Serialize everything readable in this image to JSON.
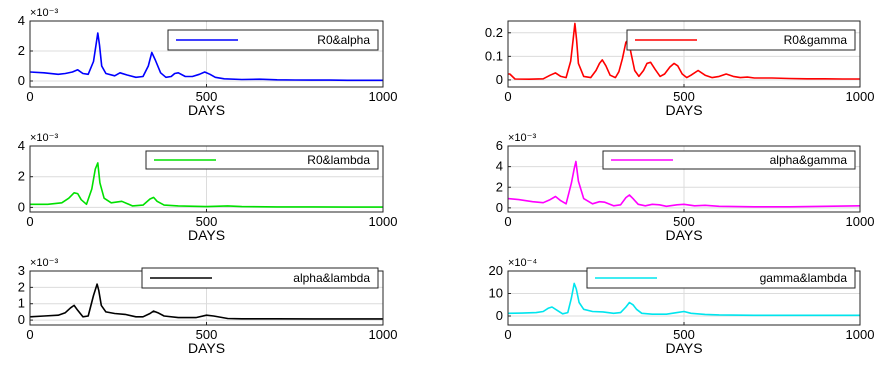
{
  "chart_data": [
    {
      "type": "line",
      "multiplier": "×10⁻³",
      "xlabel": "DAYS",
      "xlim": [
        0,
        1000
      ],
      "xticks": [
        0,
        500,
        1000
      ],
      "ylim": [
        -0.4,
        4
      ],
      "yticks": [
        0,
        2,
        4
      ],
      "grid": true,
      "legend_position": "top-right",
      "series": [
        {
          "name": "R0&alpha",
          "color": "#0000ff",
          "x": [
            0,
            40,
            80,
            100,
            120,
            135,
            150,
            165,
            180,
            187,
            192,
            197,
            203,
            215,
            240,
            255,
            275,
            300,
            320,
            335,
            345,
            355,
            370,
            385,
            400,
            410,
            420,
            440,
            460,
            480,
            495,
            510,
            525,
            550,
            600,
            650,
            700,
            750,
            800,
            850,
            900,
            950,
            1000
          ],
          "y": [
            0.6,
            0.55,
            0.45,
            0.5,
            0.6,
            0.75,
            0.5,
            0.45,
            1.3,
            2.4,
            3.2,
            2.4,
            1.0,
            0.5,
            0.35,
            0.55,
            0.4,
            0.25,
            0.3,
            1.0,
            1.9,
            1.4,
            0.55,
            0.25,
            0.3,
            0.5,
            0.55,
            0.3,
            0.3,
            0.45,
            0.6,
            0.45,
            0.25,
            0.15,
            0.1,
            0.12,
            0.08,
            0.07,
            0.06,
            0.06,
            0.05,
            0.05,
            0.05
          ]
        }
      ]
    },
    {
      "type": "line",
      "multiplier": "",
      "xlabel": "DAYS",
      "xlim": [
        0,
        1000
      ],
      "xticks": [
        0,
        500,
        1000
      ],
      "ylim": [
        -0.03,
        0.25
      ],
      "yticks": [
        0,
        0.1,
        0.2
      ],
      "ytick_labels": [
        "0",
        "0.1",
        "0.2"
      ],
      "grid": true,
      "legend_position": "top-right",
      "series": [
        {
          "name": "R0&gamma",
          "color": "#ff0000",
          "x": [
            0,
            5,
            20,
            60,
            100,
            120,
            135,
            150,
            165,
            178,
            185,
            190,
            195,
            200,
            215,
            235,
            250,
            260,
            268,
            278,
            290,
            305,
            315,
            325,
            335,
            342,
            350,
            360,
            372,
            385,
            395,
            405,
            418,
            432,
            445,
            460,
            472,
            482,
            495,
            508,
            520,
            540,
            560,
            580,
            600,
            620,
            640,
            660,
            680,
            700,
            750,
            800,
            850,
            900,
            950,
            1000
          ],
          "y": [
            0.025,
            0.025,
            0.004,
            0.003,
            0.005,
            0.02,
            0.03,
            0.015,
            0.01,
            0.08,
            0.17,
            0.24,
            0.17,
            0.07,
            0.015,
            0.01,
            0.04,
            0.07,
            0.085,
            0.06,
            0.02,
            0.01,
            0.035,
            0.09,
            0.16,
            0.17,
            0.11,
            0.04,
            0.015,
            0.04,
            0.07,
            0.075,
            0.045,
            0.015,
            0.025,
            0.055,
            0.07,
            0.06,
            0.025,
            0.01,
            0.02,
            0.04,
            0.02,
            0.01,
            0.015,
            0.025,
            0.015,
            0.01,
            0.012,
            0.008,
            0.008,
            0.006,
            0.005,
            0.005,
            0.004,
            0.004
          ]
        }
      ]
    },
    {
      "type": "line",
      "multiplier": "×10⁻³",
      "xlabel": "DAYS",
      "xlim": [
        0,
        1000
      ],
      "xticks": [
        0,
        500,
        1000
      ],
      "ylim": [
        -0.3,
        4
      ],
      "yticks": [
        0,
        2,
        4
      ],
      "grid": true,
      "legend_position": "top-right",
      "series": [
        {
          "name": "R0&lambda",
          "color": "#00e000",
          "x": [
            0,
            50,
            90,
            110,
            125,
            135,
            145,
            160,
            175,
            185,
            192,
            198,
            210,
            230,
            260,
            290,
            320,
            340,
            350,
            360,
            380,
            420,
            500,
            560,
            600,
            700,
            800,
            900,
            1000
          ],
          "y": [
            0.2,
            0.2,
            0.3,
            0.6,
            0.95,
            0.9,
            0.5,
            0.2,
            1.2,
            2.5,
            2.9,
            1.6,
            0.6,
            0.3,
            0.4,
            0.1,
            0.15,
            0.55,
            0.65,
            0.4,
            0.15,
            0.1,
            0.05,
            0.1,
            0.05,
            0.03,
            0.03,
            0.02,
            0.02
          ]
        }
      ]
    },
    {
      "type": "line",
      "multiplier": "×10⁻³",
      "xlabel": "DAYS",
      "xlim": [
        0,
        1000
      ],
      "xticks": [
        0,
        500,
        1000
      ],
      "ylim": [
        -0.4,
        6
      ],
      "yticks": [
        0,
        2,
        4,
        6
      ],
      "grid": true,
      "legend_position": "top-right",
      "series": [
        {
          "name": "alpha&gamma",
          "color": "#ff00ff",
          "x": [
            0,
            30,
            70,
            100,
            120,
            135,
            150,
            165,
            180,
            188,
            193,
            200,
            215,
            240,
            260,
            275,
            300,
            320,
            335,
            345,
            355,
            370,
            390,
            410,
            430,
            450,
            480,
            500,
            530,
            560,
            600,
            700,
            800,
            900,
            1000
          ],
          "y": [
            0.9,
            0.8,
            0.6,
            0.5,
            0.8,
            1.1,
            0.7,
            0.4,
            2.4,
            3.8,
            4.5,
            2.6,
            0.9,
            0.4,
            0.6,
            0.55,
            0.2,
            0.3,
            1.0,
            1.25,
            0.9,
            0.35,
            0.2,
            0.35,
            0.3,
            0.15,
            0.3,
            0.35,
            0.2,
            0.25,
            0.15,
            0.1,
            0.1,
            0.15,
            0.2
          ]
        }
      ]
    },
    {
      "type": "line",
      "multiplier": "×10⁻³",
      "xlabel": "DAYS",
      "xlim": [
        0,
        1000
      ],
      "xticks": [
        0,
        500,
        1000
      ],
      "ylim": [
        -0.3,
        3
      ],
      "yticks": [
        0,
        1,
        2,
        3
      ],
      "grid": true,
      "legend_position": "top-right",
      "series": [
        {
          "name": "alpha&lambda",
          "color": "#000000",
          "x": [
            0,
            40,
            80,
            100,
            115,
            125,
            135,
            150,
            165,
            180,
            190,
            195,
            202,
            215,
            240,
            270,
            300,
            320,
            340,
            350,
            362,
            380,
            420,
            470,
            500,
            520,
            560,
            600,
            700,
            800,
            900,
            1000
          ],
          "y": [
            0.2,
            0.25,
            0.3,
            0.45,
            0.75,
            0.9,
            0.6,
            0.2,
            0.25,
            1.5,
            2.2,
            1.8,
            0.9,
            0.5,
            0.4,
            0.35,
            0.2,
            0.2,
            0.4,
            0.55,
            0.45,
            0.25,
            0.15,
            0.15,
            0.3,
            0.25,
            0.1,
            0.08,
            0.08,
            0.07,
            0.07,
            0.07
          ]
        }
      ]
    },
    {
      "type": "line",
      "multiplier": "×10⁻⁴",
      "xlabel": "DAYS",
      "xlim": [
        0,
        1000
      ],
      "xticks": [
        0,
        500,
        1000
      ],
      "ylim": [
        -4,
        20
      ],
      "yticks": [
        0,
        10,
        20
      ],
      "grid": true,
      "legend_position": "top-right",
      "series": [
        {
          "name": "gamma&lambda",
          "color": "#00e5ee",
          "x": [
            0,
            40,
            80,
            100,
            115,
            125,
            140,
            155,
            170,
            180,
            188,
            194,
            202,
            215,
            240,
            270,
            300,
            320,
            335,
            345,
            355,
            365,
            380,
            410,
            450,
            480,
            500,
            520,
            560,
            600,
            700,
            800,
            900,
            1000
          ],
          "y": [
            1.2,
            1.3,
            1.5,
            2.0,
            3.5,
            4.0,
            2.5,
            1.0,
            1.5,
            8.0,
            14.5,
            12.0,
            6.0,
            3.0,
            2.0,
            1.8,
            1.2,
            1.5,
            4.0,
            6.0,
            5.0,
            3.0,
            1.2,
            0.8,
            0.8,
            1.5,
            2.0,
            1.2,
            0.7,
            0.5,
            0.3,
            0.3,
            0.3,
            0.3
          ]
        }
      ]
    }
  ]
}
